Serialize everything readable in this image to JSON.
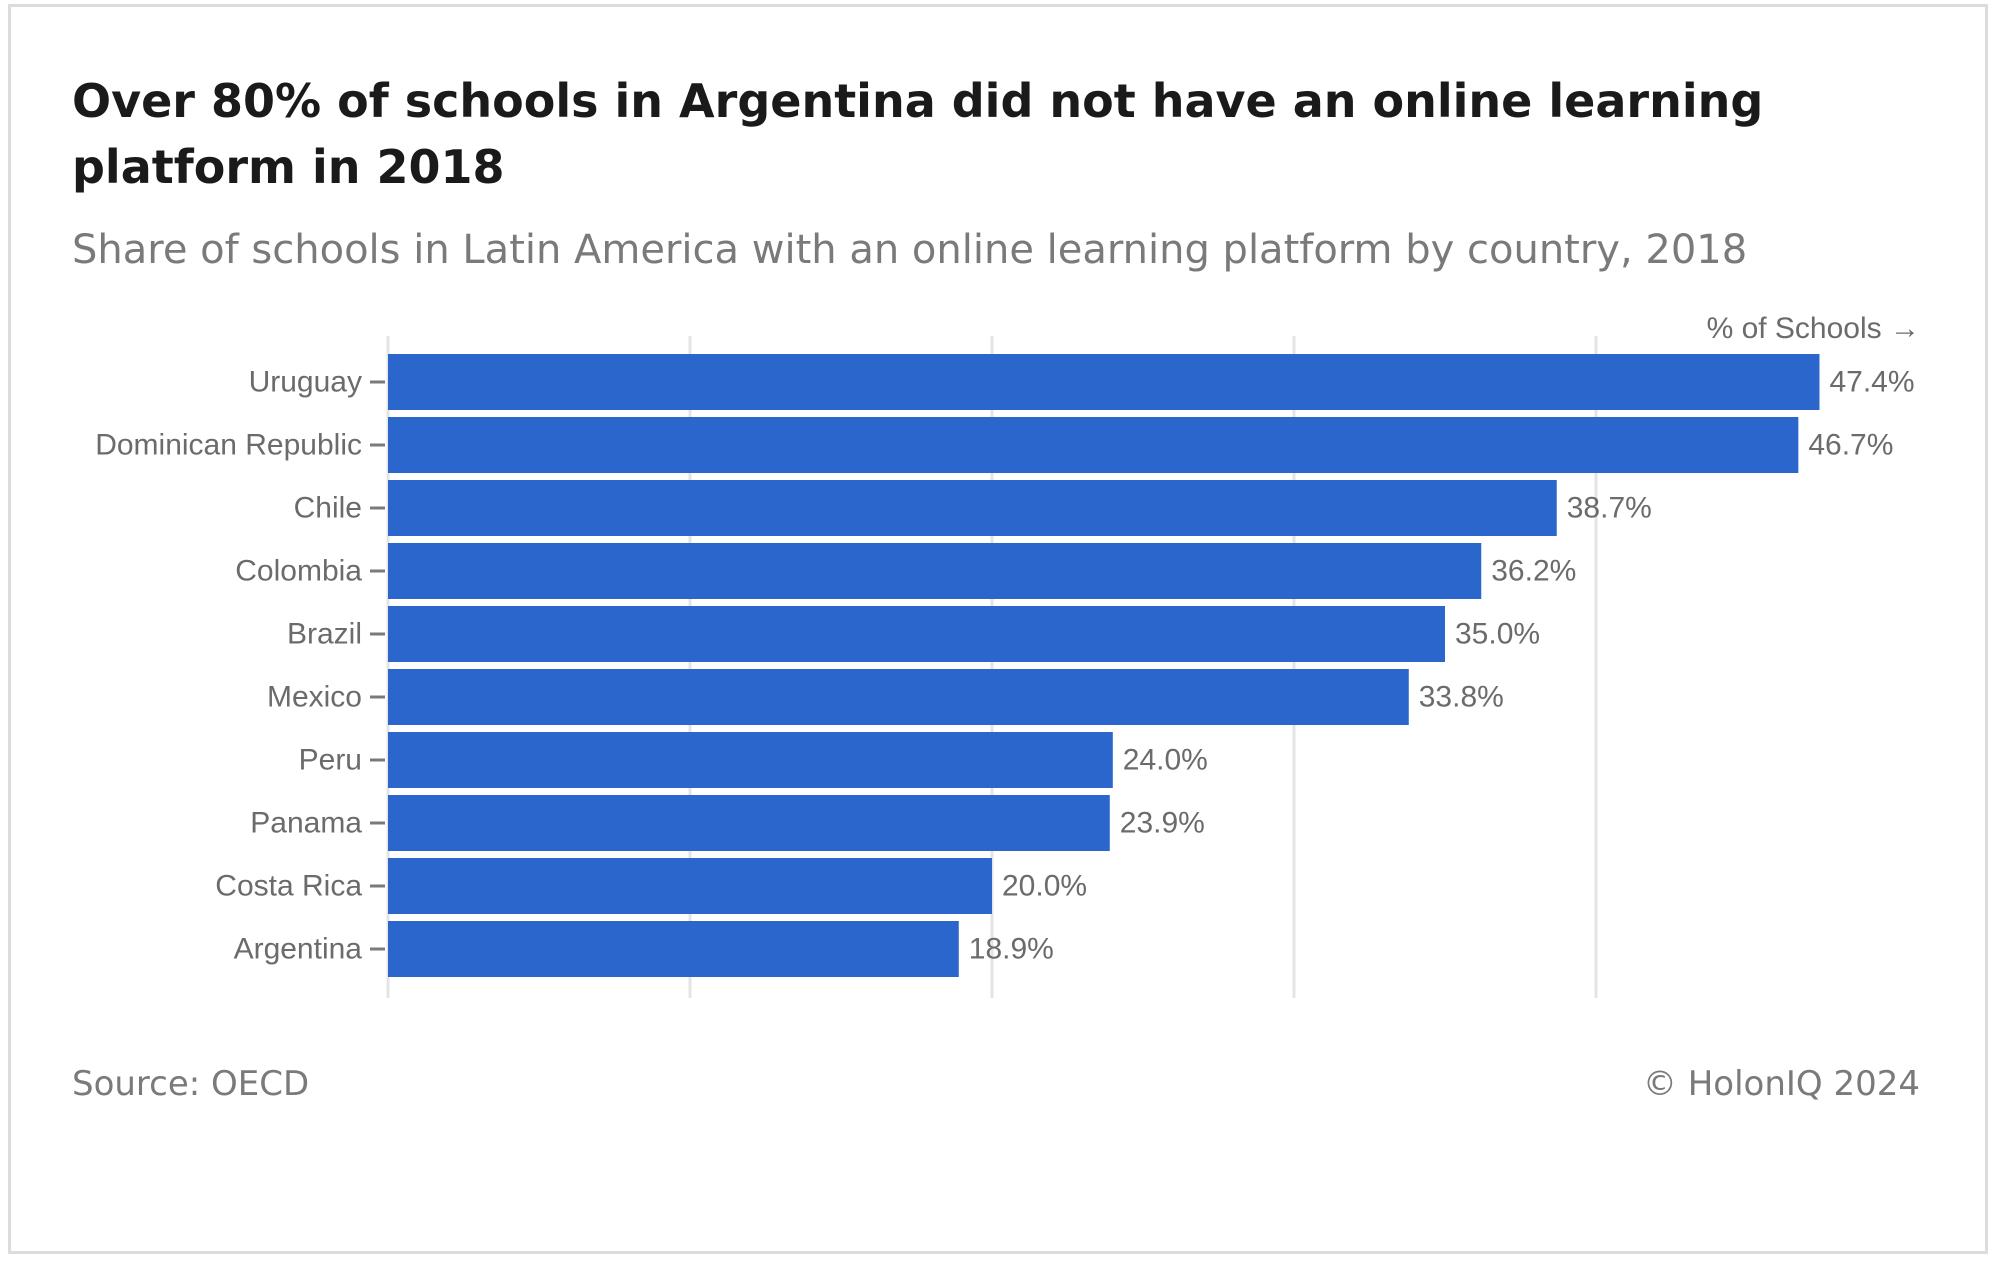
{
  "title": "Over 80% of schools in Argentina did not have an online learning platform in 2018",
  "subtitle": "Share of schools in Latin America with an online learning platform by country, 2018",
  "source": "Source: OECD",
  "credit": "© HolonIQ 2024",
  "colors": {
    "bar": "#2a66cc",
    "grid": "#e4e4e4",
    "label": "#6b6b6b"
  },
  "chart_data": {
    "type": "bar",
    "orientation": "horizontal",
    "categories": [
      "Uruguay",
      "Dominican Republic",
      "Chile",
      "Colombia",
      "Brazil",
      "Mexico",
      "Peru",
      "Panama",
      "Costa Rica",
      "Argentina"
    ],
    "values": [
      47.4,
      46.7,
      38.7,
      36.2,
      35.0,
      33.8,
      24.0,
      23.9,
      20.0,
      18.9
    ],
    "value_labels": [
      "47.4%",
      "46.7%",
      "38.7%",
      "36.2%",
      "35.0%",
      "33.8%",
      "24.0%",
      "23.9%",
      "20.0%",
      "18.9%"
    ],
    "xlabel": "% of Schools →",
    "xlim": [
      0,
      50
    ],
    "x_gridlines": [
      0,
      10,
      20,
      30,
      40
    ],
    "grid": true,
    "legend": "none"
  }
}
